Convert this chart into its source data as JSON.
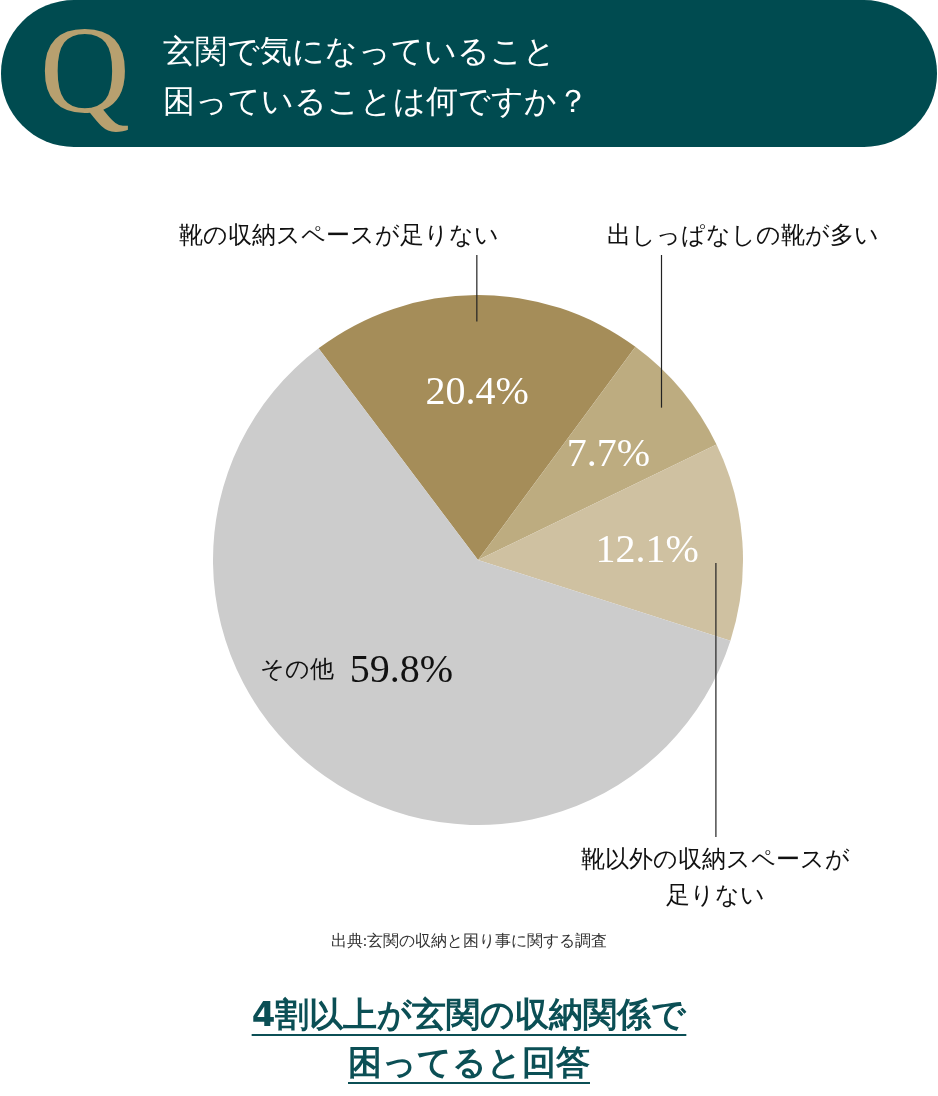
{
  "chart_data": {
    "type": "pie",
    "title": "玄関で気になっていること困っていることは何ですか？",
    "categories": [
      "靴の収納スペースが足りない",
      "出しっぱなしの靴が多い",
      "靴以外の収納スペースが足りない",
      "その他"
    ],
    "values": [
      20.4,
      7.7,
      12.1,
      59.8
    ],
    "colors": [
      "#a58d59",
      "#bdac80",
      "#cfc1a1",
      "#cccccc"
    ],
    "value_labels": [
      "20.4%",
      "7.7%",
      "12.1%",
      "59.8%"
    ],
    "annotations": [
      "Q",
      "出典:玄関の収納と困り事に関する調査",
      "4割以上が玄関の収納関係で困ってると回答"
    ]
  }
}
